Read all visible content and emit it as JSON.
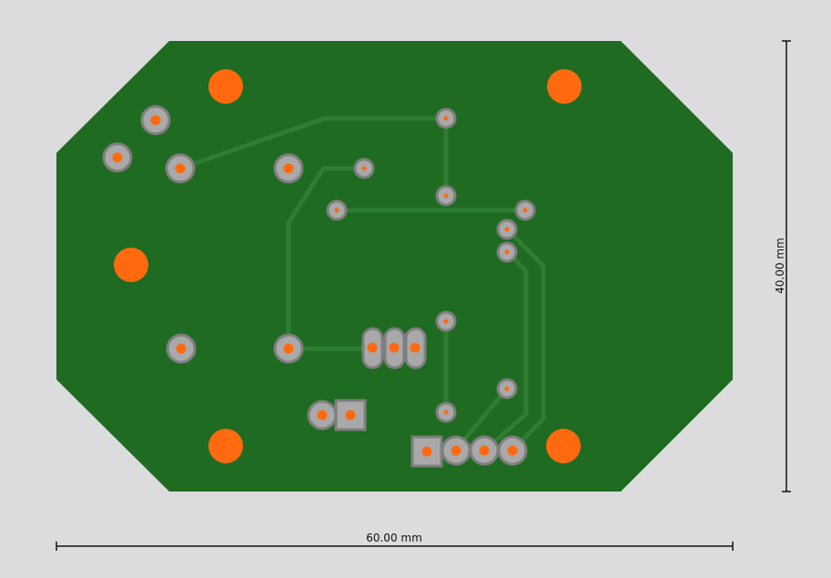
{
  "colors": {
    "background": "#dcdcdf",
    "board": "#1e6b21",
    "trace": "#2f7d32",
    "pad": "#a9a9a9",
    "pad_ring": "#7f7f7f",
    "drill": "#ff6a10",
    "mounting_hole": "#ff6a10",
    "dimension": "#111111"
  },
  "dimensions": {
    "width_label": "60.00 mm",
    "height_label": "40.00 mm"
  }
}
